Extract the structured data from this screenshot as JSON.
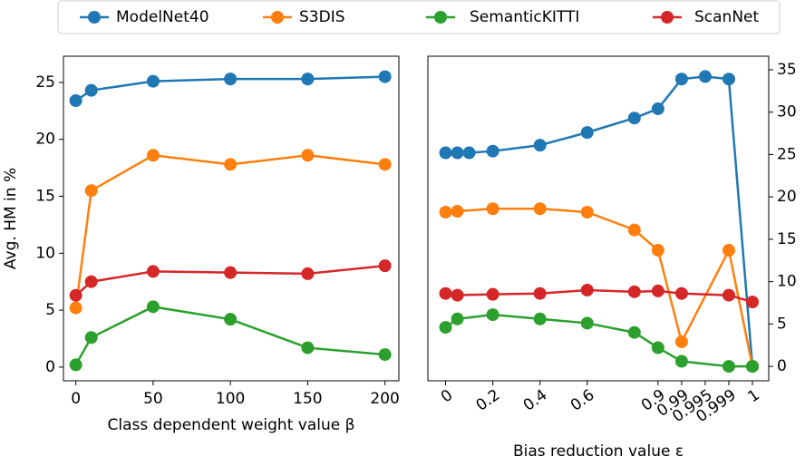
{
  "legend": [
    "ModelNet40",
    "S3DIS",
    "SemanticKITTI",
    "ScanNet"
  ],
  "chart_data": [
    {
      "type": "line",
      "xlabel": "Class dependent weight value β",
      "ylabel": "Avg. HM in %",
      "x": [
        0,
        10,
        50,
        100,
        150,
        200
      ],
      "xlim": [
        -8,
        209
      ],
      "xticks": [
        0,
        50,
        100,
        150,
        200
      ],
      "ylim": [
        -1.2,
        27.3
      ],
      "yticks": [
        0,
        5,
        10,
        15,
        20,
        25
      ],
      "yaxis_position": "left",
      "series": [
        {
          "name": "ModelNet40",
          "color": "#1f77b4",
          "values": [
            23.4,
            24.3,
            25.1,
            25.3,
            25.3,
            25.5
          ]
        },
        {
          "name": "S3DIS",
          "color": "#ff7f0e",
          "values": [
            5.2,
            15.5,
            18.6,
            17.8,
            18.6,
            17.8
          ]
        },
        {
          "name": "SemanticKITTI",
          "color": "#2ca02c",
          "values": [
            0.2,
            2.6,
            5.3,
            4.2,
            1.7,
            1.1
          ]
        },
        {
          "name": "ScanNet",
          "color": "#d62728",
          "values": [
            6.3,
            7.5,
            8.4,
            8.3,
            8.2,
            8.9
          ]
        }
      ]
    },
    {
      "type": "line",
      "xlabel": "Bias reduction value ε",
      "xlim": [
        -0.075,
        1
      ],
      "xticks": [
        0,
        0.2,
        0.4,
        0.6,
        0.9,
        0.99,
        0.995,
        0.999,
        1
      ],
      "ylim": [
        -1.7,
        36.6
      ],
      "yticks": [
        0,
        5,
        10,
        15,
        20,
        25,
        30,
        35
      ],
      "yaxis_position": "right",
      "series": [
        {
          "name": "ModelNet40",
          "color": "#1f77b4",
          "x": [
            0,
            0.05,
            0.1,
            0.2,
            0.4,
            0.6,
            0.8,
            0.9,
            0.99,
            0.995,
            0.999,
            1
          ],
          "values": [
            25.2,
            25.2,
            25.2,
            25.4,
            26.1,
            27.6,
            29.3,
            30.4,
            33.9,
            34.2,
            33.9,
            0
          ]
        },
        {
          "name": "S3DIS",
          "color": "#ff7f0e",
          "x": [
            0,
            0.05,
            0.2,
            0.4,
            0.6,
            0.8,
            0.9,
            0.99,
            0.999,
            1
          ],
          "values": [
            18.2,
            18.3,
            18.6,
            18.6,
            18.2,
            16.1,
            13.7,
            2.9,
            13.7,
            0
          ]
        },
        {
          "name": "SemanticKITTI",
          "color": "#2ca02c",
          "x": [
            0,
            0.05,
            0.2,
            0.4,
            0.6,
            0.8,
            0.9,
            0.99,
            0.999,
            1
          ],
          "values": [
            4.6,
            5.6,
            6.1,
            5.6,
            5.1,
            4.0,
            2.2,
            0.6,
            0,
            0
          ]
        },
        {
          "name": "ScanNet",
          "color": "#d62728",
          "x": [
            0,
            0.05,
            0.2,
            0.4,
            0.6,
            0.8,
            0.9,
            0.99,
            0.999,
            1
          ],
          "values": [
            8.6,
            8.4,
            8.5,
            8.6,
            9.0,
            8.8,
            8.9,
            8.6,
            8.4,
            7.6
          ]
        }
      ]
    }
  ]
}
